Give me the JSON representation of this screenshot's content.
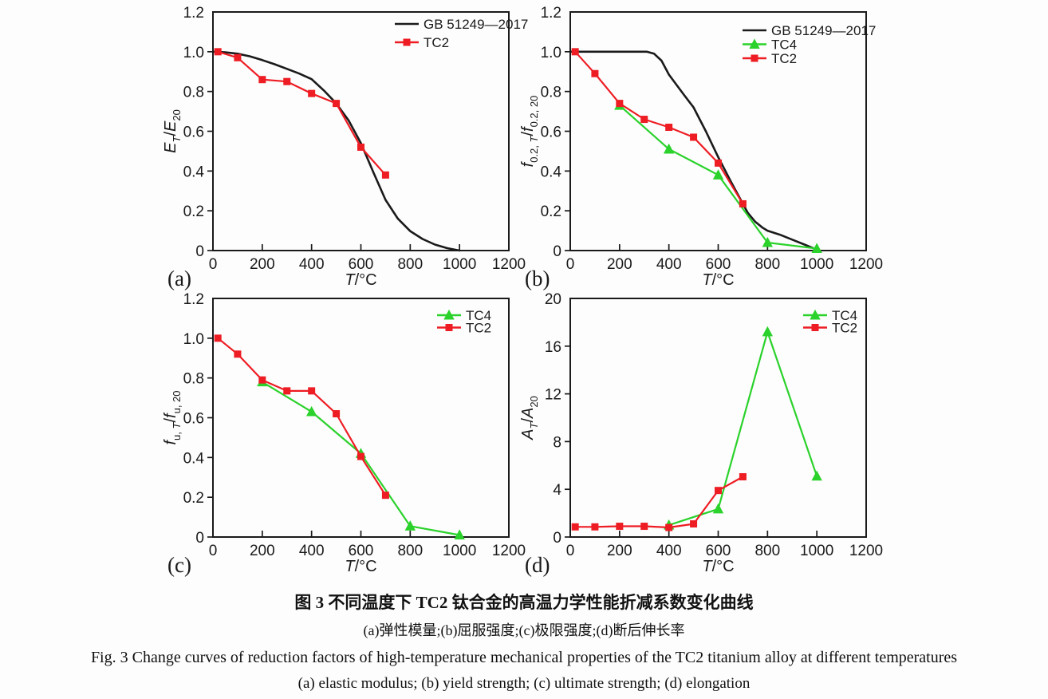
{
  "figure": {
    "captions": {
      "line1": "图 3  不同温度下 TC2 钛合金的高温力学性能折减系数变化曲线",
      "line2": "(a)弹性模量;(b)屈服强度;(c)极限强度;(d)断后伸长率",
      "line3": "Fig. 3  Change curves of reduction factors of high-temperature mechanical properties of the TC2 titanium alloy at different temperatures",
      "line4": "(a) elastic modulus; (b) yield strength; (c) ultimate strength; (d) elongation"
    },
    "colors": {
      "black": "#1a1a1a",
      "red": "#ee1c23",
      "green": "#2bd22b"
    }
  },
  "chart_data": [
    {
      "id": "a",
      "type": "line",
      "panel_label": "(a)",
      "xlabel_segments": [
        {
          "t": "T",
          "i": true
        },
        {
          "t": "/°C"
        }
      ],
      "ylabel_segments": [
        {
          "t": "E",
          "i": true
        },
        {
          "t": "T",
          "i": true,
          "sub": true
        },
        {
          "t": "/"
        },
        {
          "t": "E",
          "i": true
        },
        {
          "t": "20",
          "sub": true
        }
      ],
      "xlim": [
        0,
        1200
      ],
      "ylim": [
        0,
        1.2
      ],
      "xtick_vals": [
        0,
        200,
        400,
        600,
        800,
        1000,
        1200
      ],
      "xtick_labels": [
        "0",
        "200",
        "400",
        "600",
        "800",
        "1000",
        "1200"
      ],
      "ytick_vals": [
        0,
        0.2,
        0.4,
        0.6,
        0.8,
        1.0,
        1.2
      ],
      "ytick_labels": [
        "0",
        "0.2",
        "0.4",
        "0.6",
        "0.8",
        "1.0",
        "1.2"
      ],
      "grid": false,
      "legend": {
        "x": 228,
        "rows": [
          15,
          38
        ]
      },
      "series": [
        {
          "name": "GB 51249—2017",
          "color": "#1a1a1a",
          "marker": "none",
          "line_width": 2.6,
          "points": [
            [
              0,
              1.0
            ],
            [
              50,
              0.997
            ],
            [
              100,
              0.99
            ],
            [
              150,
              0.977
            ],
            [
              200,
              0.958
            ],
            [
              250,
              0.937
            ],
            [
              300,
              0.914
            ],
            [
              350,
              0.89
            ],
            [
              400,
              0.862
            ],
            [
              450,
              0.805
            ],
            [
              500,
              0.74
            ],
            [
              550,
              0.655
            ],
            [
              600,
              0.54
            ],
            [
              650,
              0.395
            ],
            [
              700,
              0.255
            ],
            [
              750,
              0.16
            ],
            [
              800,
              0.098
            ],
            [
              850,
              0.058
            ],
            [
              900,
              0.03
            ],
            [
              950,
              0.012
            ],
            [
              1000,
              0.0
            ]
          ]
        },
        {
          "name": "TC2",
          "color": "#ee1c23",
          "marker": "square",
          "line_width": 2.2,
          "points": [
            [
              20,
              1.0
            ],
            [
              100,
              0.97
            ],
            [
              200,
              0.86
            ],
            [
              300,
              0.85
            ],
            [
              400,
              0.79
            ],
            [
              500,
              0.74
            ],
            [
              600,
              0.52
            ],
            [
              700,
              0.38
            ]
          ]
        }
      ]
    },
    {
      "id": "b",
      "type": "line",
      "panel_label": "(b)",
      "xlabel_segments": [
        {
          "t": "T",
          "i": true
        },
        {
          "t": "/°C"
        }
      ],
      "ylabel_segments": [
        {
          "t": "f",
          "i": true
        },
        {
          "t": "0.2, ",
          "sub": true
        },
        {
          "t": "T",
          "i": true,
          "sub": true
        },
        {
          "t": "/"
        },
        {
          "t": "f",
          "i": true
        },
        {
          "t": "0.2, 20",
          "sub": true
        }
      ],
      "xlim": [
        0,
        1200
      ],
      "ylim": [
        0,
        1.2
      ],
      "xtick_vals": [
        0,
        200,
        400,
        600,
        800,
        1000,
        1200
      ],
      "xtick_labels": [
        "0",
        "200",
        "400",
        "600",
        "800",
        "1000",
        "1200"
      ],
      "ytick_vals": [
        0,
        0.2,
        0.4,
        0.6,
        0.8,
        1.0,
        1.2
      ],
      "ytick_labels": [
        "0",
        "0.2",
        "0.4",
        "0.6",
        "0.8",
        "1.0",
        "1.2"
      ],
      "grid": false,
      "legend": {
        "x": 216,
        "rows": [
          23,
          40.5,
          58
        ]
      },
      "series": [
        {
          "name": "GB 51249—2017",
          "color": "#1a1a1a",
          "marker": "none",
          "line_width": 2.6,
          "points": [
            [
              0,
              1.0
            ],
            [
              100,
              1.0
            ],
            [
              200,
              1.0
            ],
            [
              300,
              1.0
            ],
            [
              310,
              1.0
            ],
            [
              340,
              0.99
            ],
            [
              370,
              0.955
            ],
            [
              400,
              0.885
            ],
            [
              430,
              0.835
            ],
            [
              460,
              0.785
            ],
            [
              500,
              0.72
            ],
            [
              550,
              0.6
            ],
            [
              600,
              0.47
            ],
            [
              650,
              0.35
            ],
            [
              700,
              0.235
            ],
            [
              720,
              0.19
            ],
            [
              750,
              0.145
            ],
            [
              780,
              0.115
            ],
            [
              800,
              0.1
            ],
            [
              850,
              0.08
            ],
            [
              900,
              0.055
            ],
            [
              950,
              0.03
            ],
            [
              1000,
              0.005
            ]
          ]
        },
        {
          "name": "TC4",
          "color": "#2bd22b",
          "marker": "triangle",
          "line_width": 2.2,
          "points": [
            [
              200,
              0.73
            ],
            [
              400,
              0.51
            ],
            [
              600,
              0.38
            ],
            [
              800,
              0.04
            ],
            [
              1000,
              0.01
            ]
          ]
        },
        {
          "name": "TC2",
          "color": "#ee1c23",
          "marker": "square",
          "line_width": 2.2,
          "points": [
            [
              20,
              1.0
            ],
            [
              100,
              0.89
            ],
            [
              200,
              0.74
            ],
            [
              300,
              0.66
            ],
            [
              400,
              0.62
            ],
            [
              500,
              0.57
            ],
            [
              600,
              0.44
            ],
            [
              700,
              0.235
            ]
          ]
        }
      ]
    },
    {
      "id": "c",
      "type": "line",
      "panel_label": "(c)",
      "xlabel_segments": [
        {
          "t": "T",
          "i": true
        },
        {
          "t": "/°C"
        }
      ],
      "ylabel_segments": [
        {
          "t": "f",
          "i": true
        },
        {
          "t": "u, ",
          "sub": true
        },
        {
          "t": "T",
          "i": true,
          "sub": true
        },
        {
          "t": "/"
        },
        {
          "t": "f",
          "i": true
        },
        {
          "t": "u, 20",
          "sub": true
        }
      ],
      "xlim": [
        0,
        1200
      ],
      "ylim": [
        0,
        1.2
      ],
      "xtick_vals": [
        0,
        200,
        400,
        600,
        800,
        1000,
        1200
      ],
      "xtick_labels": [
        "0",
        "200",
        "400",
        "600",
        "800",
        "1000",
        "1200"
      ],
      "ytick_vals": [
        0,
        0.2,
        0.4,
        0.6,
        0.8,
        1.0,
        1.2
      ],
      "ytick_labels": [
        "0",
        "0.2",
        "0.4",
        "0.6",
        "0.8",
        "1.0",
        "1.2"
      ],
      "grid": false,
      "legend": {
        "x": 281,
        "rows": [
          21,
          36.5
        ]
      },
      "series": [
        {
          "name": "TC4",
          "color": "#2bd22b",
          "marker": "triangle",
          "line_width": 2.2,
          "points": [
            [
              200,
              0.78
            ],
            [
              400,
              0.63
            ],
            [
              600,
              0.42
            ],
            [
              800,
              0.055
            ],
            [
              1000,
              0.01
            ]
          ]
        },
        {
          "name": "TC2",
          "color": "#ee1c23",
          "marker": "square",
          "line_width": 2.2,
          "points": [
            [
              20,
              1.0
            ],
            [
              100,
              0.92
            ],
            [
              200,
              0.79
            ],
            [
              300,
              0.735
            ],
            [
              400,
              0.735
            ],
            [
              500,
              0.62
            ],
            [
              600,
              0.405
            ],
            [
              700,
              0.21
            ]
          ]
        }
      ]
    },
    {
      "id": "d",
      "type": "line",
      "panel_label": "(d)",
      "xlabel_segments": [
        {
          "t": "T",
          "i": true
        },
        {
          "t": "/°C"
        }
      ],
      "ylabel_segments": [
        {
          "t": "A",
          "i": true
        },
        {
          "t": "T",
          "i": true,
          "sub": true
        },
        {
          "t": "/"
        },
        {
          "t": "A",
          "i": true
        },
        {
          "t": "20",
          "sub": true
        }
      ],
      "xlim": [
        0,
        1200
      ],
      "ylim": [
        0,
        20
      ],
      "xtick_vals": [
        0,
        200,
        400,
        600,
        800,
        1000,
        1200
      ],
      "xtick_labels": [
        "0",
        "200",
        "400",
        "600",
        "800",
        "1000",
        "1200"
      ],
      "ytick_vals": [
        0,
        4,
        8,
        12,
        16,
        20
      ],
      "ytick_labels": [
        "0",
        "4",
        "8",
        "12",
        "16",
        "20"
      ],
      "grid": false,
      "legend": {
        "x": 292,
        "rows": [
          21,
          36.5
        ]
      },
      "series": [
        {
          "name": "TC4",
          "color": "#2bd22b",
          "marker": "triangle",
          "line_width": 2.2,
          "points": [
            [
              400,
              1.0
            ],
            [
              600,
              2.35
            ],
            [
              800,
              17.2
            ],
            [
              1000,
              5.1
            ]
          ]
        },
        {
          "name": "TC2",
          "color": "#ee1c23",
          "marker": "square",
          "line_width": 2.2,
          "points": [
            [
              20,
              0.85
            ],
            [
              100,
              0.85
            ],
            [
              200,
              0.9
            ],
            [
              300,
              0.9
            ],
            [
              400,
              0.8
            ],
            [
              500,
              1.1
            ],
            [
              600,
              3.9
            ],
            [
              700,
              5.05
            ]
          ]
        }
      ]
    }
  ]
}
